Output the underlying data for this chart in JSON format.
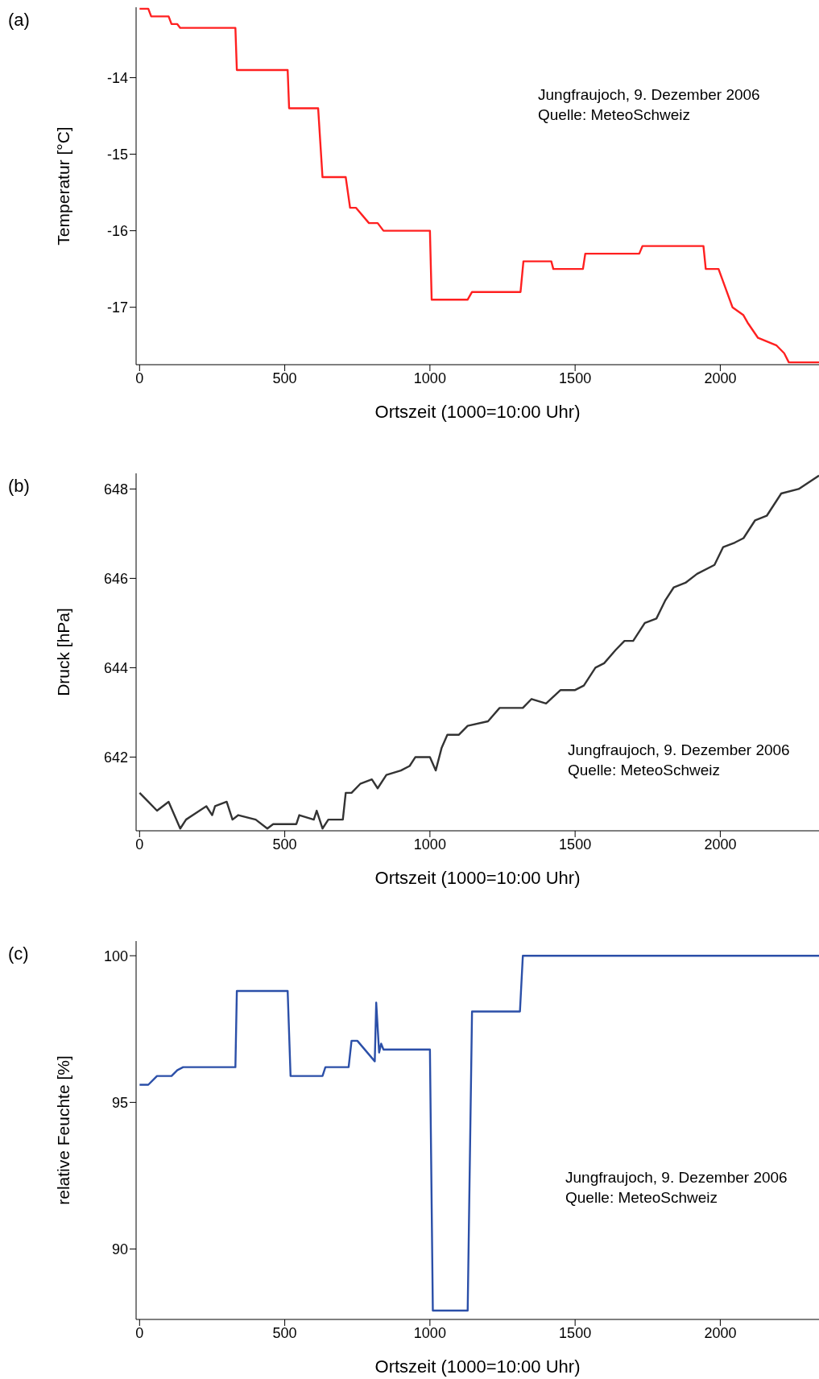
{
  "chart_data": [
    {
      "type": "line",
      "color": "#ff2020",
      "xlabel": "Ortszeit (1000=10:00 Uhr)",
      "ylabel": "Temperatur [°C]",
      "xlim": [
        -12,
        2340
      ],
      "xticks": [
        0,
        500,
        1000,
        1500,
        2000
      ],
      "ylim": [
        -17.75,
        -13.08
      ],
      "yticks": [
        -14,
        -15,
        -16,
        -17
      ],
      "annotations": [
        "(a)",
        "Jungfraujoch, 9. Dezember 2006",
        "Quelle: MeteoSchweiz"
      ],
      "x": [
        0,
        30,
        40,
        100,
        110,
        130,
        140,
        330,
        335,
        510,
        515,
        615,
        630,
        710,
        725,
        745,
        790,
        820,
        840,
        1000,
        1006,
        1130,
        1145,
        1312,
        1322,
        1418,
        1425,
        1527,
        1535,
        1721,
        1732,
        1942,
        1950,
        1994,
        2042,
        2079,
        2094,
        2130,
        2194,
        2220,
        2236,
        2340
      ],
      "values": [
        -13.1,
        -13.1,
        -13.2,
        -13.2,
        -13.3,
        -13.3,
        -13.35,
        -13.35,
        -13.9,
        -13.9,
        -14.4,
        -14.4,
        -15.3,
        -15.3,
        -15.7,
        -15.7,
        -15.9,
        -15.9,
        -16,
        -16,
        -16.9,
        -16.9,
        -16.8,
        -16.8,
        -16.4,
        -16.4,
        -16.5,
        -16.5,
        -16.3,
        -16.3,
        -16.2,
        -16.2,
        -16.5,
        -16.5,
        -17,
        -17.1,
        -17.2,
        -17.4,
        -17.5,
        -17.6,
        -17.72,
        -17.72
      ]
    },
    {
      "type": "line",
      "color": "#333333",
      "xlabel": "Ortszeit (1000=10:00 Uhr)",
      "ylabel": "Druck [hPa]",
      "xlim": [
        -12,
        2340
      ],
      "xticks": [
        0,
        500,
        1000,
        1500,
        2000
      ],
      "ylim": [
        640.35,
        648.35
      ],
      "yticks": [
        642,
        644,
        646,
        648
      ],
      "annotations": [
        "(b)",
        "Jungfraujoch, 9. Dezember 2006",
        "Quelle: MeteoSchweiz"
      ],
      "x": [
        0,
        30,
        60,
        100,
        140,
        160,
        230,
        250,
        260,
        300,
        320,
        340,
        400,
        440,
        460,
        540,
        550,
        600,
        610,
        630,
        650,
        700,
        710,
        730,
        760,
        800,
        820,
        850,
        900,
        930,
        950,
        1000,
        1020,
        1040,
        1060,
        1100,
        1130,
        1200,
        1240,
        1320,
        1350,
        1400,
        1450,
        1500,
        1530,
        1570,
        1600,
        1640,
        1670,
        1700,
        1740,
        1780,
        1810,
        1840,
        1880,
        1920,
        1980,
        2010,
        2050,
        2080,
        2120,
        2160,
        2210,
        2270,
        2340
      ],
      "values": [
        641.2,
        641,
        640.8,
        641,
        640.4,
        640.6,
        640.9,
        640.7,
        640.9,
        641,
        640.6,
        640.7,
        640.6,
        640.4,
        640.5,
        640.5,
        640.7,
        640.6,
        640.8,
        640.4,
        640.6,
        640.6,
        641.2,
        641.2,
        641.4,
        641.5,
        641.3,
        641.6,
        641.7,
        641.8,
        642,
        642,
        641.7,
        642.2,
        642.5,
        642.5,
        642.7,
        642.8,
        643.1,
        643.1,
        643.3,
        643.2,
        643.5,
        643.5,
        643.6,
        644,
        644.1,
        644.4,
        644.6,
        644.6,
        645,
        645.1,
        645.5,
        645.8,
        645.9,
        646.1,
        646.3,
        646.7,
        646.8,
        646.9,
        647.3,
        647.4,
        647.9,
        648,
        648.3
      ]
    },
    {
      "type": "line",
      "color": "#2b4fa8",
      "xlabel": "Ortszeit (1000=10:00 Uhr)",
      "ylabel": "relative Feuchte [%]",
      "xlim": [
        -12,
        2340
      ],
      "xticks": [
        0,
        500,
        1000,
        1500,
        2000
      ],
      "ylim": [
        87.6,
        100.5
      ],
      "yticks": [
        90,
        95,
        100
      ],
      "annotations": [
        "(c)",
        "Jungfraujoch, 9. Dezember 2006",
        "Quelle: MeteoSchweiz"
      ],
      "x": [
        0,
        30,
        60,
        110,
        130,
        150,
        330,
        335,
        510,
        520,
        630,
        640,
        720,
        730,
        750,
        810,
        815,
        825,
        832,
        840,
        1000,
        1010,
        1130,
        1145,
        1310,
        1320,
        2340
      ],
      "values": [
        95.6,
        95.6,
        95.9,
        95.9,
        96.1,
        96.2,
        96.2,
        98.8,
        98.8,
        95.9,
        95.9,
        96.2,
        96.2,
        97.1,
        97.1,
        96.4,
        98.4,
        96.7,
        97,
        96.8,
        96.8,
        87.9,
        87.9,
        98.1,
        98.1,
        100,
        100
      ]
    }
  ]
}
